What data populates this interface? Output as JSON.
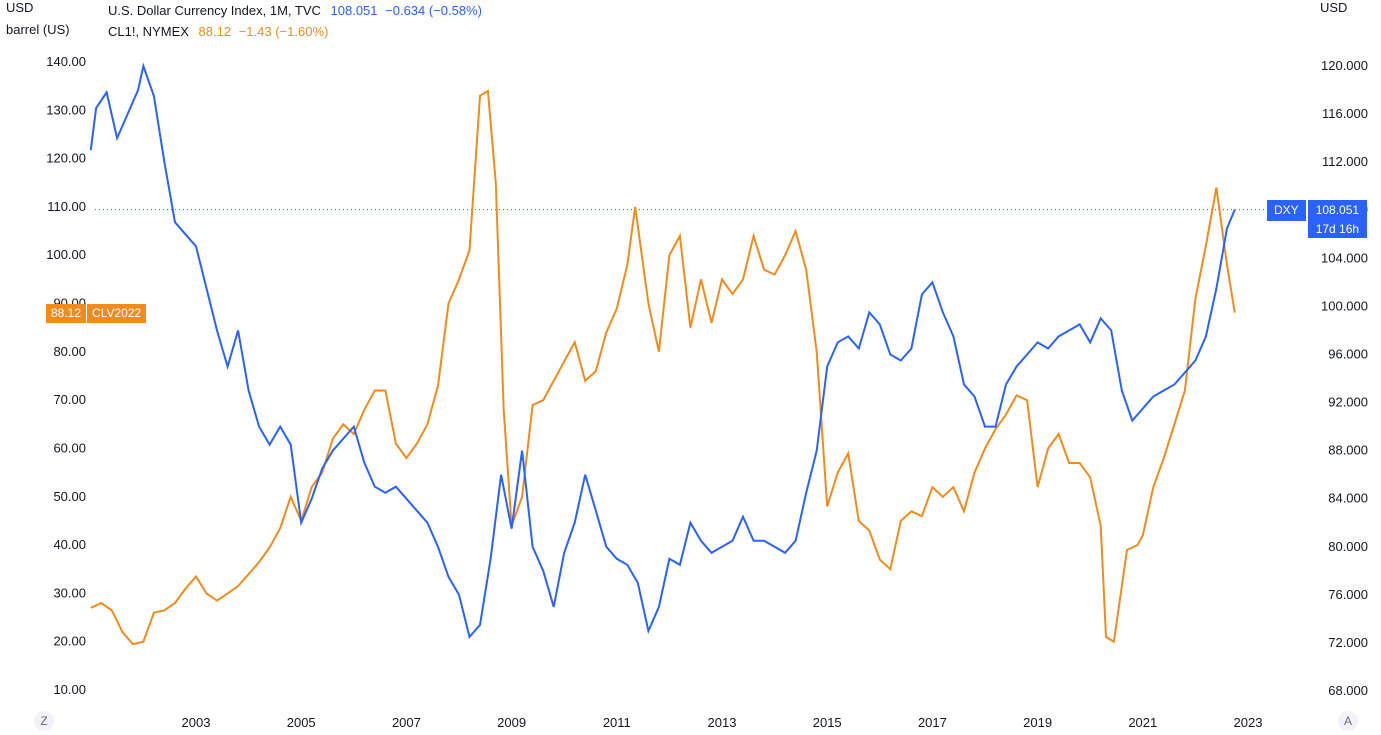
{
  "header": {
    "left_unit_1": "USD",
    "left_unit_2": "barrel (US)",
    "right_unit": "USD",
    "dxy_name": "U.S. Dollar Currency Index, 1M, TVC",
    "dxy_last": "108.051",
    "dxy_change": "−0.634 (−0.58%)",
    "oil_name": "CL1!, NYMEX",
    "oil_last": "88.12",
    "oil_change": "−1.43 (−1.60%)"
  },
  "price_tags": {
    "oil_value": "88.12",
    "oil_contract": "CLV2022",
    "dxy_label": "DXY",
    "dxy_value": "108.051",
    "dxy_countdown": "17d 16h"
  },
  "buttons": {
    "left_corner": "Z",
    "right_corner": "A"
  },
  "colors": {
    "dxy": "#2962ff",
    "oil": "#f28b1c",
    "text": "#131722",
    "axis_text": "#131722"
  },
  "chart_data": {
    "type": "line",
    "x_ticks": [
      "2003",
      "2005",
      "2007",
      "2009",
      "2011",
      "2013",
      "2015",
      "2017",
      "2019",
      "2021",
      "2023"
    ],
    "left_axis": {
      "unit": "USD / barrel (US)",
      "ticks": [
        "140.00",
        "130.00",
        "120.00",
        "110.00",
        "100.00",
        "90.00",
        "80.00",
        "70.00",
        "60.00",
        "50.00",
        "40.00",
        "30.00",
        "20.00",
        "10.00"
      ],
      "ylim": [
        8,
        143
      ]
    },
    "right_axis": {
      "unit": "USD",
      "ticks": [
        "120.000",
        "116.000",
        "112.000",
        "108.000",
        "104.000",
        "100.000",
        "96.000",
        "92.000",
        "88.000",
        "84.000",
        "80.000",
        "76.000",
        "72.000",
        "68.000"
      ],
      "ylim": [
        66,
        122
      ]
    },
    "xlim": [
      2001.0,
      2023.0
    ],
    "series": [
      {
        "name": "U.S. Dollar Currency Index",
        "axis": "right",
        "x": [
          2001.0,
          2001.1,
          2001.3,
          2001.5,
          2001.7,
          2001.9,
          2002.0,
          2002.2,
          2002.4,
          2002.6,
          2002.8,
          2003.0,
          2003.2,
          2003.4,
          2003.6,
          2003.8,
          2004.0,
          2004.2,
          2004.4,
          2004.6,
          2004.8,
          2005.0,
          2005.2,
          2005.4,
          2005.6,
          2005.8,
          2006.0,
          2006.2,
          2006.4,
          2006.6,
          2006.8,
          2007.0,
          2007.2,
          2007.4,
          2007.6,
          2007.8,
          2008.0,
          2008.2,
          2008.4,
          2008.6,
          2008.8,
          2009.0,
          2009.2,
          2009.4,
          2009.6,
          2009.8,
          2010.0,
          2010.2,
          2010.4,
          2010.6,
          2010.8,
          2011.0,
          2011.2,
          2011.4,
          2011.6,
          2011.8,
          2012.0,
          2012.2,
          2012.4,
          2012.6,
          2012.8,
          2013.0,
          2013.2,
          2013.4,
          2013.6,
          2013.8,
          2014.0,
          2014.2,
          2014.4,
          2014.6,
          2014.8,
          2015.0,
          2015.2,
          2015.4,
          2015.6,
          2015.8,
          2016.0,
          2016.2,
          2016.4,
          2016.6,
          2016.8,
          2017.0,
          2017.2,
          2017.4,
          2017.6,
          2017.8,
          2018.0,
          2018.2,
          2018.4,
          2018.6,
          2018.8,
          2019.0,
          2019.2,
          2019.4,
          2019.6,
          2019.8,
          2020.0,
          2020.2,
          2020.4,
          2020.6,
          2020.8,
          2021.0,
          2021.2,
          2021.4,
          2021.6,
          2021.8,
          2022.0,
          2022.2,
          2022.4,
          2022.6,
          2022.75
        ],
        "values": [
          113.0,
          116.5,
          117.8,
          114.0,
          116.0,
          118.0,
          120.0,
          117.5,
          112.0,
          107.0,
          106.0,
          105.0,
          101.5,
          98.0,
          95.0,
          98.0,
          93.0,
          90.0,
          88.5,
          90.0,
          88.5,
          82.0,
          84.0,
          86.5,
          88.0,
          89.0,
          90.0,
          87.0,
          85.0,
          84.5,
          85.0,
          84.0,
          83.0,
          82.0,
          80.0,
          77.5,
          76.0,
          72.5,
          73.5,
          79.0,
          86.0,
          81.5,
          88.0,
          80.0,
          78.0,
          75.0,
          79.5,
          82.0,
          86.0,
          83.0,
          80.0,
          79.0,
          78.5,
          77.0,
          73.0,
          75.0,
          79.0,
          78.5,
          82.0,
          80.5,
          79.5,
          80.0,
          80.5,
          82.5,
          80.5,
          80.5,
          80.0,
          79.5,
          80.5,
          84.5,
          88.0,
          95.0,
          97.0,
          97.5,
          96.5,
          99.5,
          98.5,
          96.0,
          95.5,
          96.5,
          101.0,
          102.0,
          99.5,
          97.5,
          93.5,
          92.5,
          90.0,
          90.0,
          93.5,
          95.0,
          96.0,
          97.0,
          96.5,
          97.5,
          98.0,
          98.5,
          97.0,
          99.0,
          98.0,
          93.0,
          90.5,
          91.5,
          92.5,
          93.0,
          93.5,
          94.5,
          95.5,
          97.5,
          101.5,
          106.5,
          108.051
        ]
      },
      {
        "name": "CL1!, NYMEX",
        "axis": "left",
        "x": [
          2001.0,
          2001.2,
          2001.4,
          2001.6,
          2001.8,
          2002.0,
          2002.2,
          2002.4,
          2002.6,
          2002.8,
          2003.0,
          2003.2,
          2003.4,
          2003.6,
          2003.8,
          2004.0,
          2004.2,
          2004.4,
          2004.6,
          2004.8,
          2005.0,
          2005.2,
          2005.4,
          2005.6,
          2005.8,
          2006.0,
          2006.2,
          2006.4,
          2006.6,
          2006.8,
          2007.0,
          2007.2,
          2007.4,
          2007.6,
          2007.8,
          2008.0,
          2008.2,
          2008.4,
          2008.55,
          2008.7,
          2008.85,
          2009.0,
          2009.2,
          2009.4,
          2009.6,
          2009.8,
          2010.0,
          2010.2,
          2010.4,
          2010.6,
          2010.8,
          2011.0,
          2011.2,
          2011.35,
          2011.6,
          2011.8,
          2012.0,
          2012.2,
          2012.4,
          2012.6,
          2012.8,
          2013.0,
          2013.2,
          2013.4,
          2013.6,
          2013.8,
          2014.0,
          2014.2,
          2014.4,
          2014.6,
          2014.8,
          2015.0,
          2015.2,
          2015.4,
          2015.6,
          2015.8,
          2016.0,
          2016.2,
          2016.4,
          2016.6,
          2016.8,
          2017.0,
          2017.2,
          2017.4,
          2017.6,
          2017.8,
          2018.0,
          2018.2,
          2018.4,
          2018.6,
          2018.8,
          2019.0,
          2019.2,
          2019.4,
          2019.6,
          2019.8,
          2020.0,
          2020.2,
          2020.3,
          2020.45,
          2020.7,
          2020.9,
          2021.0,
          2021.2,
          2021.4,
          2021.6,
          2021.8,
          2022.0,
          2022.2,
          2022.4,
          2022.6,
          2022.75
        ],
        "values": [
          27.0,
          28.0,
          26.5,
          22.0,
          19.5,
          20.0,
          26.0,
          26.5,
          28.0,
          31.0,
          33.5,
          30.0,
          28.5,
          30.0,
          31.5,
          34.0,
          36.5,
          39.5,
          43.5,
          50.0,
          45.0,
          52.0,
          55.0,
          62.0,
          65.0,
          63.0,
          68.0,
          72.0,
          72.0,
          61.0,
          58.0,
          61.0,
          65.0,
          73.0,
          90.0,
          95.0,
          101.0,
          133.0,
          134.0,
          115.0,
          68.0,
          44.0,
          50.0,
          69.0,
          70.0,
          74.0,
          78.0,
          82.0,
          74.0,
          76.0,
          84.0,
          89.0,
          98.0,
          110.0,
          90.0,
          80.0,
          100.0,
          104.0,
          85.0,
          95.0,
          86.0,
          95.0,
          92.0,
          95.0,
          104.0,
          97.0,
          96.0,
          100.0,
          105.0,
          97.0,
          80.0,
          48.0,
          55.0,
          59.0,
          45.0,
          43.0,
          37.0,
          35.0,
          45.0,
          47.0,
          46.0,
          52.0,
          50.0,
          52.0,
          47.0,
          55.0,
          60.0,
          64.0,
          67.0,
          71.0,
          70.0,
          52.0,
          60.0,
          63.0,
          57.0,
          57.0,
          54.0,
          44.0,
          21.0,
          20.0,
          39.0,
          40.0,
          42.0,
          52.0,
          58.0,
          65.0,
          72.0,
          91.0,
          102.0,
          114.0,
          98.0,
          88.12
        ]
      }
    ]
  }
}
